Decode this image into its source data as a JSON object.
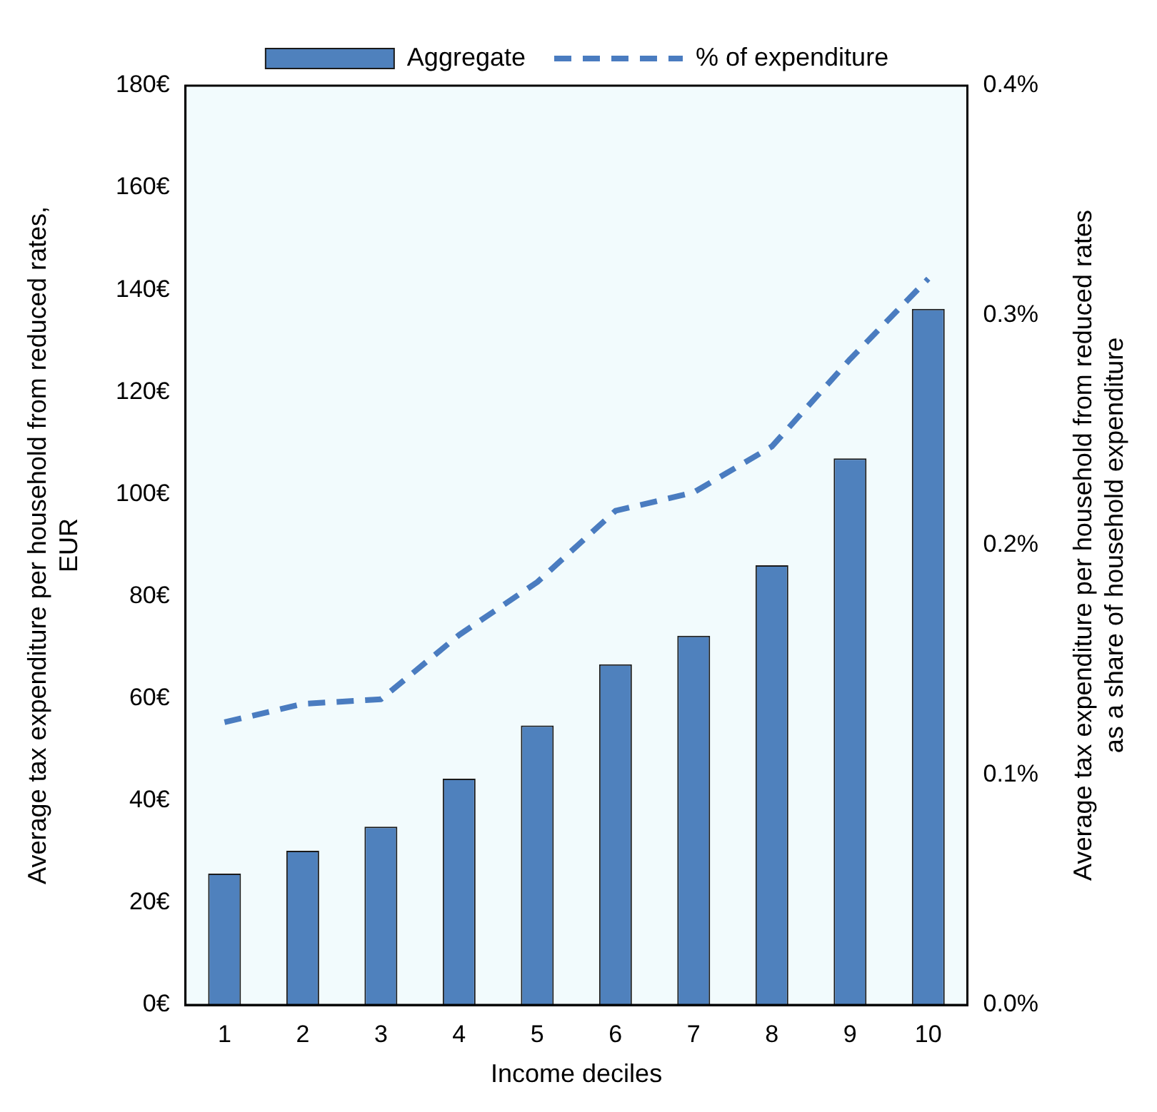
{
  "chart_data": {
    "type": "bar",
    "xlabel": "Income deciles",
    "ylabel": "Average tax expenditure per household from reduced rates, EUR",
    "y2label": "Average tax expenditure per household from reduced rates as a share of household expenditure",
    "categories": [
      "1",
      "2",
      "3",
      "4",
      "5",
      "6",
      "7",
      "8",
      "9",
      "10"
    ],
    "series": [
      {
        "name": "Aggregate",
        "color": "#4f81bd",
        "values": [
          25.7,
          30.2,
          34.9,
          44.3,
          54.7,
          66.7,
          72.3,
          86.1,
          107,
          136.3
        ]
      },
      {
        "name": "% of expenditure",
        "type": "line",
        "axis": "y2",
        "color": "#4a7cc0",
        "line_style": "dashed",
        "marker": "none",
        "values": [
          0.123,
          0.131,
          0.133,
          0.161,
          0.184,
          0.215,
          0.223,
          0.243,
          0.281,
          0.316
        ]
      }
    ],
    "ylim": [
      0,
      180
    ],
    "yticks": [
      {
        "value": 0,
        "label": "0€"
      },
      {
        "value": 20,
        "label": "20€"
      },
      {
        "value": 40,
        "label": "40€"
      },
      {
        "value": 60,
        "label": "60€"
      },
      {
        "value": 80,
        "label": "80€"
      },
      {
        "value": 100,
        "label": "100€"
      },
      {
        "value": 120,
        "label": "120€"
      },
      {
        "value": 140,
        "label": "140€"
      },
      {
        "value": 160,
        "label": "160€"
      },
      {
        "value": 180,
        "label": "180€"
      }
    ],
    "y2lim": [
      0,
      0.4
    ],
    "y2ticks": [
      {
        "value": 0,
        "label": "0.0%"
      },
      {
        "value": 0.1,
        "label": "0.1%"
      },
      {
        "value": 0.2,
        "label": "0.2%"
      },
      {
        "value": 0.3,
        "label": "0.3%"
      },
      {
        "value": 0.4,
        "label": "0.4%"
      }
    ],
    "grid": false,
    "legend": "top"
  }
}
